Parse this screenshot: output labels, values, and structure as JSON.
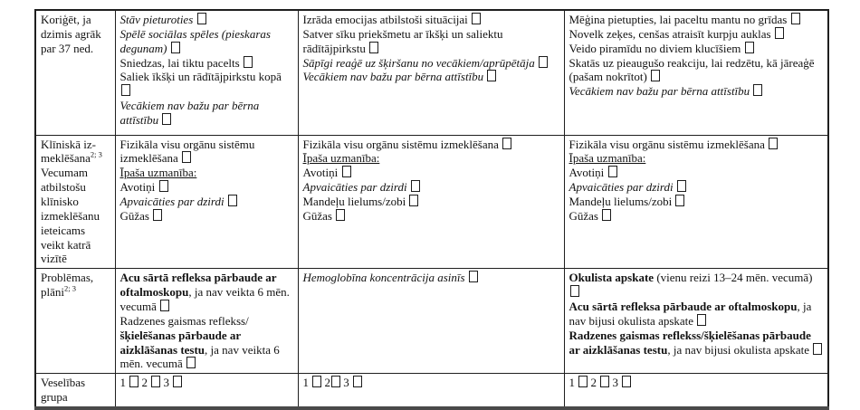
{
  "colors": {
    "ink": "#121212",
    "border": "#1f1f1f",
    "bottom_border": "#4a4a4a",
    "background": "#ffffff"
  },
  "icons": {
    "checkbox": "empty-square"
  },
  "table": {
    "rows": [
      {
        "name": "row-early-birth-correction",
        "cells": [
          {
            "items": [
              {
                "runs": [
                  {
                    "t": "text",
                    "style": "regular",
                    "text": "Koriģēt, ja dzimis agrāk par 37 ned."
                  }
                ]
              }
            ]
          },
          {
            "items": [
              {
                "runs": [
                  {
                    "t": "text",
                    "style": "italic",
                    "text": "Stāv pieturoties "
                  },
                  {
                    "t": "checkbox"
                  }
                ]
              },
              {
                "runs": [
                  {
                    "t": "text",
                    "style": "italic",
                    "text": "Spēlē sociālas spēles (pieskaras degunam) "
                  },
                  {
                    "t": "checkbox"
                  }
                ]
              },
              {
                "runs": [
                  {
                    "t": "text",
                    "style": "regular",
                    "text": "Sniedzas, lai tiktu pacelts "
                  },
                  {
                    "t": "checkbox"
                  }
                ]
              },
              {
                "runs": [
                  {
                    "t": "text",
                    "style": "regular",
                    "text": "Saliek īkšķi un rādītājpirkstu kopā "
                  },
                  {
                    "t": "checkbox"
                  }
                ]
              },
              {
                "runs": [
                  {
                    "t": "text",
                    "style": "italic",
                    "text": "Vecākiem nav bažu par bērna attīstību "
                  },
                  {
                    "t": "checkbox"
                  }
                ]
              }
            ]
          },
          {
            "items": [
              {
                "runs": [
                  {
                    "t": "text",
                    "style": "regular",
                    "text": "Izrāda emocijas atbilstoši situācijai "
                  },
                  {
                    "t": "checkbox"
                  }
                ]
              },
              {
                "runs": [
                  {
                    "t": "text",
                    "style": "regular",
                    "text": "Satver sīku priekšmetu ar īkšķi un saliektu rādītājpirkstu "
                  },
                  {
                    "t": "checkbox"
                  }
                ]
              },
              {
                "runs": [
                  {
                    "t": "text",
                    "style": "italic",
                    "text": "Sāpīgi reaģē uz šķiršanu no vecākiem/aprūpētāja "
                  },
                  {
                    "t": "checkbox"
                  }
                ]
              },
              {
                "runs": [
                  {
                    "t": "text",
                    "style": "italic",
                    "text": "Vecākiem nav bažu par bērna attīstību "
                  },
                  {
                    "t": "checkbox"
                  }
                ]
              }
            ]
          },
          {
            "items": [
              {
                "runs": [
                  {
                    "t": "text",
                    "style": "regular",
                    "text": "Mēģina pietupties, lai paceltu mantu no grīdas "
                  },
                  {
                    "t": "checkbox"
                  }
                ]
              },
              {
                "runs": [
                  {
                    "t": "text",
                    "style": "regular",
                    "text": "Novelk zeķes, cenšas atraisīt kurpju auklas "
                  },
                  {
                    "t": "checkbox"
                  }
                ]
              },
              {
                "runs": [
                  {
                    "t": "text",
                    "style": "regular",
                    "text": "Veido piramīdu no diviem klucīšiem "
                  },
                  {
                    "t": "checkbox"
                  }
                ]
              },
              {
                "runs": [
                  {
                    "t": "text",
                    "style": "regular",
                    "text": "Skatās uz pieaugušo reakciju, lai redzētu, kā jāreaģē (pašam nokrītot) "
                  },
                  {
                    "t": "checkbox"
                  }
                ]
              },
              {
                "runs": [
                  {
                    "t": "text",
                    "style": "italic",
                    "text": "Vecākiem nav bažu par bērna attīstību "
                  },
                  {
                    "t": "checkbox"
                  }
                ]
              }
            ]
          }
        ]
      },
      {
        "name": "row-clinical-examination",
        "cells": [
          {
            "items": [
              {
                "runs": [
                  {
                    "t": "text",
                    "style": "regular",
                    "text": "Klīniskā iz-meklēšana"
                  },
                  {
                    "t": "text",
                    "style": "sup",
                    "text": "2; 3"
                  }
                ]
              },
              {
                "runs": [
                  {
                    "t": "text",
                    "style": "regular",
                    "text": "Vecumam atbilstošu klīnisko izmeklēšanu ieteicams veikt katrā vizītē"
                  }
                ]
              }
            ]
          },
          {
            "items": [
              {
                "runs": [
                  {
                    "t": "text",
                    "style": "regular",
                    "text": "Fizikāla visu orgānu sistēmu izmeklēšana "
                  },
                  {
                    "t": "checkbox"
                  }
                ]
              },
              {
                "runs": [
                  {
                    "t": "text",
                    "style": "underline",
                    "text": "Īpaša uzmanība:"
                  }
                ]
              },
              {
                "runs": [
                  {
                    "t": "text",
                    "style": "regular",
                    "text": "Avotiņi "
                  },
                  {
                    "t": "checkbox"
                  }
                ]
              },
              {
                "runs": [
                  {
                    "t": "text",
                    "style": "italic",
                    "text": "Apvaicāties par dzirdi "
                  },
                  {
                    "t": "checkbox"
                  }
                ]
              },
              {
                "runs": [
                  {
                    "t": "text",
                    "style": "regular",
                    "text": "Gūžas "
                  },
                  {
                    "t": "checkbox"
                  }
                ]
              }
            ]
          },
          {
            "items": [
              {
                "runs": [
                  {
                    "t": "text",
                    "style": "regular",
                    "text": "Fizikāla visu orgānu sistēmu izmeklēšana "
                  },
                  {
                    "t": "checkbox"
                  }
                ]
              },
              {
                "runs": [
                  {
                    "t": "text",
                    "style": "underline",
                    "text": "Īpaša uzmanība:"
                  }
                ]
              },
              {
                "runs": [
                  {
                    "t": "text",
                    "style": "regular",
                    "text": "Avotiņi "
                  },
                  {
                    "t": "checkbox"
                  }
                ]
              },
              {
                "runs": [
                  {
                    "t": "text",
                    "style": "italic",
                    "text": "Apvaicāties par dzirdi "
                  },
                  {
                    "t": "checkbox"
                  }
                ]
              },
              {
                "runs": [
                  {
                    "t": "text",
                    "style": "regular",
                    "text": "Mandeļu lielums/zobi "
                  },
                  {
                    "t": "checkbox"
                  }
                ]
              },
              {
                "runs": [
                  {
                    "t": "text",
                    "style": "regular",
                    "text": "Gūžas "
                  },
                  {
                    "t": "checkbox"
                  }
                ]
              }
            ]
          },
          {
            "items": [
              {
                "runs": [
                  {
                    "t": "text",
                    "style": "regular",
                    "text": "Fizikāla visu orgānu sistēmu izmeklēšana "
                  },
                  {
                    "t": "checkbox"
                  }
                ]
              },
              {
                "runs": [
                  {
                    "t": "text",
                    "style": "underline",
                    "text": "Īpaša uzmanība:"
                  }
                ]
              },
              {
                "runs": [
                  {
                    "t": "text",
                    "style": "regular",
                    "text": "Avotiņi "
                  },
                  {
                    "t": "checkbox"
                  }
                ]
              },
              {
                "runs": [
                  {
                    "t": "text",
                    "style": "italic",
                    "text": "Apvaicāties par dzirdi "
                  },
                  {
                    "t": "checkbox"
                  }
                ]
              },
              {
                "runs": [
                  {
                    "t": "text",
                    "style": "regular",
                    "text": "Mandeļu lielums/zobi "
                  },
                  {
                    "t": "checkbox"
                  }
                ]
              },
              {
                "runs": [
                  {
                    "t": "text",
                    "style": "regular",
                    "text": "Gūžas "
                  },
                  {
                    "t": "checkbox"
                  }
                ]
              }
            ]
          }
        ]
      },
      {
        "name": "row-problems-plans",
        "cells": [
          {
            "items": [
              {
                "runs": [
                  {
                    "t": "text",
                    "style": "regular",
                    "text": "Problēmas, plāni"
                  },
                  {
                    "t": "text",
                    "style": "sup",
                    "text": "2; 3"
                  }
                ]
              }
            ]
          },
          {
            "items": [
              {
                "runs": [
                  {
                    "t": "text",
                    "style": "bold",
                    "text": "Acu sārtā refleksa pārbaude ar oftalmoskopu"
                  },
                  {
                    "t": "text",
                    "style": "regular",
                    "text": ", ja nav veikta 6 mēn. vecumā "
                  },
                  {
                    "t": "checkbox"
                  }
                ]
              },
              {
                "runs": [
                  {
                    "t": "text",
                    "style": "regular",
                    "text": "Radzenes gaismas reflekss/"
                  },
                  {
                    "t": "text",
                    "style": "bold",
                    "text": "šķielēšanas pārbaude ar aizklāšanas testu"
                  },
                  {
                    "t": "text",
                    "style": "regular",
                    "text": ", ja nav veikta 6 mēn. vecumā "
                  },
                  {
                    "t": "checkbox"
                  }
                ]
              }
            ]
          },
          {
            "items": [
              {
                "runs": [
                  {
                    "t": "text",
                    "style": "italic",
                    "text": "Hemoglobīna koncentrācija asinīs "
                  },
                  {
                    "t": "checkbox"
                  }
                ]
              }
            ]
          },
          {
            "items": [
              {
                "runs": [
                  {
                    "t": "text",
                    "style": "bold",
                    "text": "Okulista apskate"
                  },
                  {
                    "t": "text",
                    "style": "regular",
                    "text": " (vienu reizi 13–24 mēn. vecumā) "
                  },
                  {
                    "t": "checkbox"
                  }
                ]
              },
              {
                "runs": [
                  {
                    "t": "text",
                    "style": "bold",
                    "text": "Acu sārtā refleksa pārbaude ar oftalmoskopu"
                  },
                  {
                    "t": "text",
                    "style": "regular",
                    "text": ", ja nav bijusi okulista apskate "
                  },
                  {
                    "t": "checkbox"
                  }
                ]
              },
              {
                "runs": [
                  {
                    "t": "text",
                    "style": "bold",
                    "text": "Radzenes gaismas reflekss/šķielēšanas pārbaude ar aizklāšanas testu"
                  },
                  {
                    "t": "text",
                    "style": "regular",
                    "text": ", ja nav bijusi okulista apskate "
                  },
                  {
                    "t": "checkbox"
                  }
                ]
              }
            ]
          }
        ]
      },
      {
        "name": "row-health-group",
        "cells": [
          {
            "items": [
              {
                "runs": [
                  {
                    "t": "text",
                    "style": "regular",
                    "text": "Veselības grupa"
                  }
                ]
              }
            ]
          },
          {
            "items": [
              {
                "runs": [
                  {
                    "t": "text",
                    "style": "regular",
                    "text": "1 "
                  },
                  {
                    "t": "checkbox"
                  },
                  {
                    "t": "text",
                    "style": "regular",
                    "text": " 2 "
                  },
                  {
                    "t": "checkbox"
                  },
                  {
                    "t": "text",
                    "style": "regular",
                    "text": " 3 "
                  },
                  {
                    "t": "checkbox"
                  }
                ]
              }
            ]
          },
          {
            "items": [
              {
                "runs": [
                  {
                    "t": "text",
                    "style": "regular",
                    "text": "1 "
                  },
                  {
                    "t": "checkbox"
                  },
                  {
                    "t": "text",
                    "style": "regular",
                    "text": " 2"
                  },
                  {
                    "t": "checkbox"
                  },
                  {
                    "t": "text",
                    "style": "regular",
                    "text": " 3 "
                  },
                  {
                    "t": "checkbox"
                  }
                ]
              }
            ]
          },
          {
            "items": [
              {
                "runs": [
                  {
                    "t": "text",
                    "style": "regular",
                    "text": "1 "
                  },
                  {
                    "t": "checkbox"
                  },
                  {
                    "t": "text",
                    "style": "regular",
                    "text": " 2 "
                  },
                  {
                    "t": "checkbox"
                  },
                  {
                    "t": "text",
                    "style": "regular",
                    "text": " 3 "
                  },
                  {
                    "t": "checkbox"
                  }
                ]
              }
            ]
          }
        ]
      }
    ]
  }
}
